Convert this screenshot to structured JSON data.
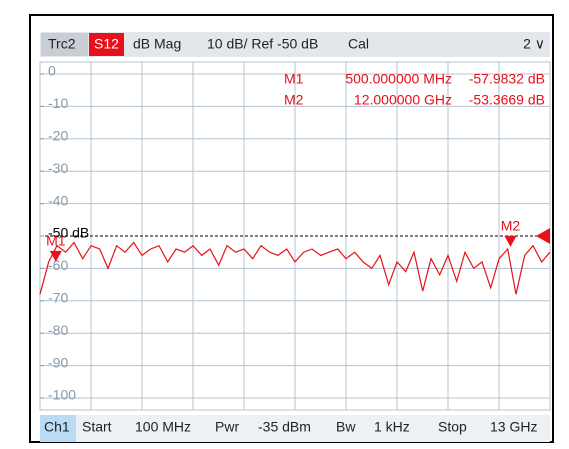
{
  "chart_data": {
    "type": "line",
    "header": {
      "trace": "Trc2",
      "parameter": "S12",
      "format": "dB Mag",
      "scale": "10 dB/ Ref -50 dB",
      "calibration": "Cal",
      "channel_menu": "2 ∨"
    },
    "x": [
      0.1,
      0.32,
      0.53,
      0.75,
      0.96,
      1.18,
      1.39,
      1.61,
      1.82,
      2.04,
      2.25,
      2.47,
      2.68,
      2.9,
      3.11,
      3.33,
      3.54,
      3.76,
      3.97,
      4.19,
      4.4,
      4.62,
      4.83,
      5.05,
      5.26,
      5.48,
      5.69,
      5.91,
      6.12,
      6.34,
      6.55,
      6.77,
      6.98,
      7.2,
      7.41,
      7.63,
      7.84,
      8.06,
      8.27,
      8.49,
      8.7,
      8.92,
      9.13,
      9.35,
      9.56,
      9.78,
      9.99,
      10.21,
      10.42,
      10.64,
      10.85,
      11.07,
      11.28,
      11.5,
      11.71,
      11.93,
      12.14,
      12.36,
      12.57,
      12.79,
      13.0
    ],
    "series": [
      {
        "name": "S12",
        "color": "#e8101a",
        "values": [
          -68,
          -58,
          -53,
          -55,
          -52,
          -57,
          -53,
          -54,
          -60,
          -53,
          -55,
          -52,
          -56,
          -54,
          -53,
          -58,
          -54,
          -55,
          -53,
          -56,
          -54,
          -59,
          -53,
          -55,
          -54,
          -57,
          -53,
          -55,
          -56,
          -54,
          -58,
          -55,
          -54,
          -56,
          -55,
          -54,
          -57,
          -55,
          -58,
          -60,
          -56,
          -65,
          -58,
          -61,
          -55,
          -67,
          -57,
          -62,
          -56,
          -64,
          -55,
          -60,
          -58,
          -66,
          -57,
          -54,
          -68,
          -56,
          -53,
          -58,
          -55
        ]
      }
    ],
    "markers": [
      {
        "name": "M1",
        "x": 0.5,
        "x_label": "500.000000 MHz",
        "value": -57.9832,
        "value_label": "-57.9832 dB"
      },
      {
        "name": "M2",
        "x": 12,
        "x_label": "12.000000 GHz",
        "value": -53.3669,
        "value_label": "-53.3669 dB"
      }
    ],
    "xlim": [
      0.1,
      13
    ],
    "ylim": [
      -100,
      0
    ],
    "yticks": [
      0,
      -10,
      -20,
      -30,
      -40,
      {
        "value": -50,
        "label": "-50 dB"
      },
      -60,
      -70,
      -80,
      -90,
      -100
    ],
    "grid": true,
    "footer": {
      "channel": "Ch1",
      "items": [
        {
          "label": "Start",
          "value": "100 MHz"
        },
        {
          "label": "Pwr",
          "value": "-35 dBm"
        },
        {
          "label": "Bw",
          "value": "1 kHz"
        },
        {
          "label": "Stop",
          "value": "13 GHz"
        }
      ]
    }
  }
}
